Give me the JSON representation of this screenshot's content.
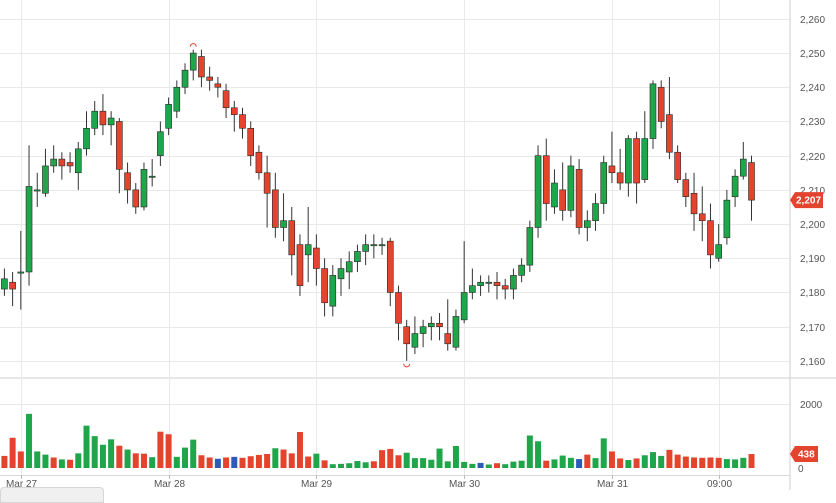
{
  "chart_data": {
    "type": "candlestick",
    "price_axis": {
      "ylim": [
        2155,
        2262
      ],
      "ticks": [
        "2,260",
        "2,250",
        "2,240",
        "2,230",
        "2,220",
        "2,210",
        "2,200",
        "2,190",
        "2,180",
        "2,170",
        "2,160"
      ],
      "tick_values": [
        2260,
        2250,
        2240,
        2230,
        2220,
        2210,
        2200,
        2190,
        2180,
        2170,
        2160
      ]
    },
    "volume_axis": {
      "ylim": [
        0,
        2700
      ],
      "ticks": [
        "2000",
        "0"
      ],
      "tick_values": [
        2000,
        0
      ]
    },
    "x_labels": [
      "Mar 27",
      "Mar 28",
      "Mar 29",
      "Mar 30",
      "Mar 31",
      "09:00"
    ],
    "x_label_index": [
      2,
      20,
      38,
      56,
      74,
      87
    ],
    "last_price": "2,207",
    "last_volume": "438",
    "colors": {
      "up": "#1fa54a",
      "down": "#e4432d",
      "other": "#2b5db6",
      "badge": "#e4432d",
      "grid": "#e9e9e9"
    },
    "candles": [
      [
        2181,
        2184,
        2179,
        2187
      ],
      [
        2183,
        2181,
        2176,
        2186
      ],
      [
        2186,
        2186,
        2175,
        2198
      ],
      [
        2186,
        2211,
        2182,
        2223
      ],
      [
        2210,
        2210,
        2205,
        2215
      ],
      [
        2209,
        2217,
        2208,
        2222
      ],
      [
        2217,
        2219,
        2215,
        2223
      ],
      [
        2219,
        2217,
        2213,
        2221
      ],
      [
        2218,
        2217,
        2215,
        2221
      ],
      [
        2215,
        2222,
        2210,
        2224
      ],
      [
        2222,
        2228,
        2220,
        2233
      ],
      [
        2228,
        2233,
        2226,
        2236
      ],
      [
        2233,
        2229,
        2226,
        2238
      ],
      [
        2229,
        2231,
        2223,
        2233
      ],
      [
        2230,
        2216,
        2209,
        2231
      ],
      [
        2215,
        2210,
        2206,
        2218
      ],
      [
        2210,
        2205,
        2203,
        2212
      ],
      [
        2205,
        2216,
        2204,
        2218
      ],
      [
        2214,
        2214,
        2211,
        2219
      ],
      [
        2220,
        2227,
        2217,
        2230
      ],
      [
        2228,
        2235,
        2226,
        2237
      ],
      [
        2233,
        2240,
        2231,
        2242
      ],
      [
        2240,
        2245,
        2238,
        2247
      ],
      [
        2245,
        2250,
        2242,
        2251
      ],
      [
        2249,
        2243,
        2240,
        2251
      ],
      [
        2243,
        2242,
        2239,
        2246
      ],
      [
        2241,
        2240,
        2237,
        2243
      ],
      [
        2239,
        2234,
        2231,
        2241
      ],
      [
        2234,
        2232,
        2227,
        2236
      ],
      [
        2232,
        2228,
        2225,
        2234
      ],
      [
        2228,
        2220,
        2217,
        2230
      ],
      [
        2221,
        2215,
        2213,
        2223
      ],
      [
        2215,
        2209,
        2199,
        2220
      ],
      [
        2210,
        2199,
        2196,
        2215
      ],
      [
        2199,
        2201,
        2195,
        2209
      ],
      [
        2201,
        2191,
        2185,
        2205
      ],
      [
        2194,
        2182,
        2179,
        2197
      ],
      [
        2191,
        2194,
        2183,
        2205
      ],
      [
        2193,
        2187,
        2182,
        2197
      ],
      [
        2187,
        2177,
        2173,
        2190
      ],
      [
        2176,
        2185,
        2173,
        2188
      ],
      [
        2184,
        2187,
        2179,
        2190
      ],
      [
        2186,
        2189,
        2181,
        2192
      ],
      [
        2189,
        2192,
        2186,
        2194
      ],
      [
        2192,
        2194,
        2188,
        2197
      ],
      [
        2194,
        2194,
        2190,
        2197
      ],
      [
        2194,
        2194,
        2191,
        2196
      ],
      [
        2195,
        2180,
        2176,
        2196
      ],
      [
        2180,
        2171,
        2166,
        2182
      ],
      [
        2170,
        2165,
        2160,
        2172
      ],
      [
        2164,
        2168,
        2162,
        2173
      ],
      [
        2168,
        2170,
        2164,
        2172
      ],
      [
        2170,
        2171,
        2166,
        2173
      ],
      [
        2171,
        2170,
        2166,
        2174
      ],
      [
        2168,
        2165,
        2163,
        2178
      ],
      [
        2164,
        2173,
        2163,
        2175
      ],
      [
        2172,
        2180,
        2171,
        2195
      ],
      [
        2180,
        2182,
        2178,
        2187
      ],
      [
        2182,
        2183,
        2179,
        2185
      ],
      [
        2183,
        2183,
        2180,
        2185
      ],
      [
        2183,
        2182,
        2178,
        2186
      ],
      [
        2182,
        2181,
        2178,
        2184
      ],
      [
        2181,
        2185,
        2178,
        2187
      ],
      [
        2185,
        2188,
        2183,
        2190
      ],
      [
        2188,
        2199,
        2186,
        2201
      ],
      [
        2199,
        2220,
        2196,
        2223
      ],
      [
        2220,
        2206,
        2201,
        2225
      ],
      [
        2205,
        2212,
        2203,
        2216
      ],
      [
        2210,
        2204,
        2201,
        2218
      ],
      [
        2204,
        2217,
        2202,
        2220
      ],
      [
        2216,
        2199,
        2197,
        2219
      ],
      [
        2199,
        2201,
        2195,
        2204
      ],
      [
        2201,
        2206,
        2198,
        2209
      ],
      [
        2206,
        2218,
        2203,
        2220
      ],
      [
        2217,
        2215,
        2212,
        2227
      ],
      [
        2215,
        2212,
        2210,
        2222
      ],
      [
        2212,
        2225,
        2208,
        2226
      ],
      [
        2225,
        2212,
        2206,
        2227
      ],
      [
        2213,
        2225,
        2212,
        2233
      ],
      [
        2225,
        2241,
        2222,
        2242
      ],
      [
        2240,
        2230,
        2228,
        2242
      ],
      [
        2232,
        2221,
        2219,
        2243
      ],
      [
        2221,
        2213,
        2212,
        2223
      ],
      [
        2213,
        2208,
        2205,
        2215
      ],
      [
        2209,
        2203,
        2198,
        2215
      ],
      [
        2203,
        2201,
        2195,
        2211
      ],
      [
        2201,
        2191,
        2187,
        2206
      ],
      [
        2190,
        2194,
        2189,
        2200
      ],
      [
        2196,
        2207,
        2194,
        2210
      ],
      [
        2208,
        2214,
        2205,
        2216
      ],
      [
        2214,
        2219,
        2213,
        2224
      ],
      [
        2218,
        2207,
        2201,
        2220
      ]
    ],
    "volumes": [
      [
        380,
        "down"
      ],
      [
        950,
        "down"
      ],
      [
        520,
        "down"
      ],
      [
        1700,
        "up"
      ],
      [
        520,
        "up"
      ],
      [
        420,
        "up"
      ],
      [
        330,
        "down"
      ],
      [
        270,
        "up"
      ],
      [
        260,
        "down"
      ],
      [
        460,
        "up"
      ],
      [
        1330,
        "up"
      ],
      [
        1000,
        "up"
      ],
      [
        730,
        "up"
      ],
      [
        900,
        "up"
      ],
      [
        700,
        "down"
      ],
      [
        580,
        "up"
      ],
      [
        460,
        "down"
      ],
      [
        450,
        "down"
      ],
      [
        340,
        "up"
      ],
      [
        1140,
        "down"
      ],
      [
        1060,
        "down"
      ],
      [
        350,
        "up"
      ],
      [
        640,
        "up"
      ],
      [
        890,
        "up"
      ],
      [
        400,
        "down"
      ],
      [
        330,
        "down"
      ],
      [
        290,
        "other"
      ],
      [
        330,
        "down"
      ],
      [
        350,
        "other"
      ],
      [
        320,
        "down"
      ],
      [
        370,
        "down"
      ],
      [
        410,
        "down"
      ],
      [
        440,
        "down"
      ],
      [
        620,
        "up"
      ],
      [
        580,
        "down"
      ],
      [
        460,
        "down"
      ],
      [
        1130,
        "down"
      ],
      [
        360,
        "down"
      ],
      [
        450,
        "up"
      ],
      [
        240,
        "down"
      ],
      [
        120,
        "up"
      ],
      [
        130,
        "up"
      ],
      [
        150,
        "up"
      ],
      [
        220,
        "up"
      ],
      [
        180,
        "up"
      ],
      [
        210,
        "down"
      ],
      [
        560,
        "down"
      ],
      [
        600,
        "down"
      ],
      [
        400,
        "down"
      ],
      [
        480,
        "up"
      ],
      [
        310,
        "up"
      ],
      [
        310,
        "up"
      ],
      [
        260,
        "up"
      ],
      [
        610,
        "up"
      ],
      [
        210,
        "up"
      ],
      [
        690,
        "up"
      ],
      [
        190,
        "up"
      ],
      [
        130,
        "up"
      ],
      [
        160,
        "other"
      ],
      [
        110,
        "up"
      ],
      [
        150,
        "down"
      ],
      [
        120,
        "up"
      ],
      [
        200,
        "up"
      ],
      [
        230,
        "up"
      ],
      [
        1020,
        "up"
      ],
      [
        840,
        "up"
      ],
      [
        230,
        "down"
      ],
      [
        270,
        "up"
      ],
      [
        390,
        "up"
      ],
      [
        320,
        "up"
      ],
      [
        280,
        "other"
      ],
      [
        420,
        "down"
      ],
      [
        310,
        "up"
      ],
      [
        930,
        "up"
      ],
      [
        520,
        "down"
      ],
      [
        300,
        "down"
      ],
      [
        250,
        "up"
      ],
      [
        300,
        "down"
      ],
      [
        400,
        "up"
      ],
      [
        500,
        "up"
      ],
      [
        380,
        "up"
      ],
      [
        570,
        "down"
      ],
      [
        420,
        "down"
      ],
      [
        360,
        "down"
      ],
      [
        330,
        "down"
      ],
      [
        320,
        "down"
      ],
      [
        330,
        "down"
      ],
      [
        320,
        "down"
      ],
      [
        280,
        "up"
      ],
      [
        270,
        "up"
      ],
      [
        320,
        "up"
      ],
      [
        438,
        "down"
      ]
    ]
  }
}
